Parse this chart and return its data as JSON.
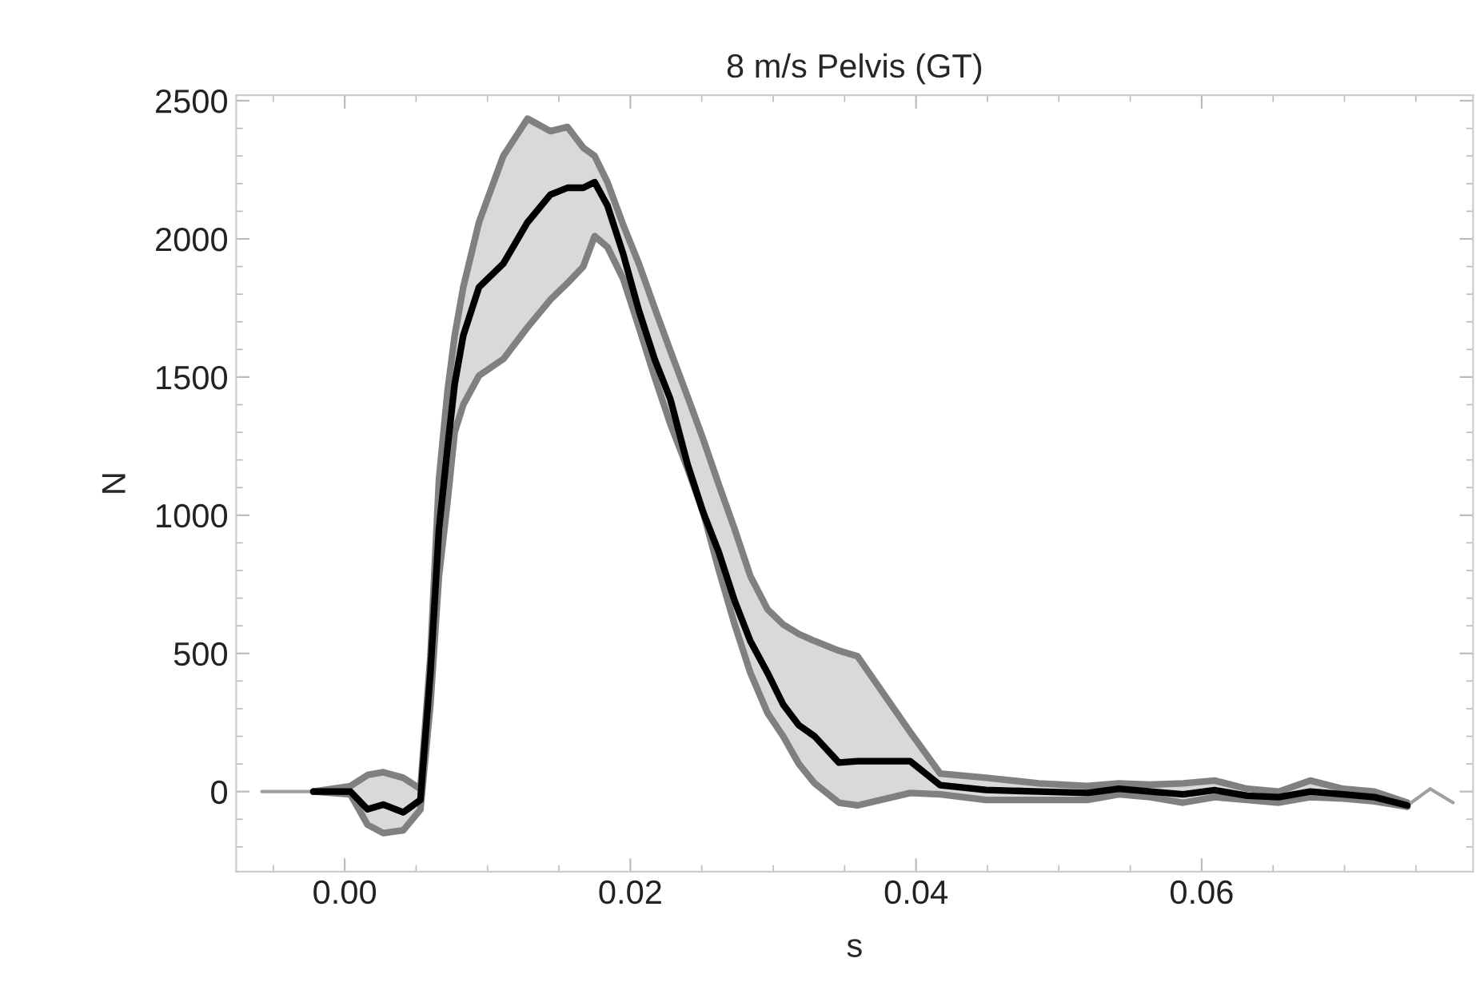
{
  "chart_data": {
    "type": "line",
    "title": "8 m/s Pelvis (GT)",
    "xlabel": "s",
    "ylabel": "N",
    "x": [
      -0.0022,
      0.0004,
      0.0016,
      0.0027,
      0.0041,
      0.0053,
      0.006,
      0.0066,
      0.0072,
      0.0077,
      0.0083,
      0.0094,
      0.0111,
      0.0128,
      0.0144,
      0.0156,
      0.0167,
      0.0175,
      0.0184,
      0.0195,
      0.0206,
      0.0217,
      0.0228,
      0.024,
      0.0251,
      0.0262,
      0.0273,
      0.0284,
      0.0296,
      0.0307,
      0.0318,
      0.0329,
      0.0346,
      0.0359,
      0.0396,
      0.0417,
      0.0449,
      0.0486,
      0.052,
      0.0542,
      0.0564,
      0.0587,
      0.0609,
      0.0632,
      0.0654,
      0.0676,
      0.0699,
      0.0721,
      0.0744
    ],
    "series": [
      {
        "color": "#000000",
        "values": [
          0,
          0,
          -64,
          -47,
          -75,
          -30,
          430,
          950,
          1245,
          1475,
          1650,
          1825,
          1910,
          2060,
          2160,
          2185,
          2185,
          2205,
          2120,
          1945,
          1740,
          1565,
          1420,
          1185,
          1010,
          865,
          690,
          545,
          430,
          315,
          240,
          200,
          105,
          110,
          110,
          23,
          6,
          0,
          -5,
          10,
          0,
          -10,
          5,
          -15,
          -20,
          0,
          -10,
          -20,
          -50
        ],
        "lower": [
          0,
          -10,
          -120,
          -150,
          -140,
          -65,
          315,
          780,
          1050,
          1300,
          1400,
          1505,
          1565,
          1680,
          1780,
          1840,
          1900,
          2010,
          1970,
          1855,
          1680,
          1500,
          1330,
          1170,
          1010,
          800,
          605,
          430,
          285,
          200,
          100,
          30,
          -40,
          -50,
          -5,
          -10,
          -30,
          -30,
          -30,
          -10,
          -20,
          -40,
          -20,
          -30,
          -40,
          -20,
          -25,
          -35,
          -55
        ],
        "upper": [
          0,
          20,
          60,
          70,
          50,
          10,
          490,
          1130,
          1450,
          1650,
          1825,
          2060,
          2300,
          2435,
          2390,
          2405,
          2330,
          2300,
          2205,
          2050,
          1910,
          1750,
          1595,
          1430,
          1275,
          1110,
          950,
          780,
          660,
          605,
          570,
          545,
          510,
          490,
          215,
          65,
          50,
          30,
          20,
          30,
          25,
          30,
          40,
          10,
          0,
          40,
          10,
          0,
          -40
        ]
      },
      {
        "color": "#808080",
        "values": [
          0,
          -10,
          -120,
          -150,
          -140,
          -65,
          315,
          780,
          1050,
          1300,
          1400,
          1505,
          1565,
          1680,
          1780,
          1840,
          1900,
          2010,
          1970,
          1855,
          1680,
          1500,
          1330,
          1170,
          1010,
          800,
          605,
          430,
          285,
          200,
          100,
          30,
          -40,
          -50,
          -5,
          -10,
          -30,
          -30,
          -30,
          -10,
          -20,
          -40,
          -20,
          -30,
          -40,
          -20,
          -25,
          -35,
          -55
        ]
      },
      {
        "color": "#808080",
        "values": [
          0,
          20,
          60,
          70,
          50,
          10,
          490,
          1130,
          1450,
          1650,
          1825,
          2060,
          2300,
          2435,
          2390,
          2405,
          2330,
          2300,
          2205,
          2050,
          1910,
          1750,
          1595,
          1430,
          1275,
          1110,
          950,
          780,
          660,
          605,
          570,
          545,
          510,
          490,
          215,
          65,
          50,
          30,
          20,
          30,
          25,
          30,
          40,
          10,
          0,
          40,
          10,
          0,
          -40
        ]
      },
      {
        "color": "#a0a0a0",
        "x": [
          -0.0058,
          -0.0022,
          0.03,
          0.0744,
          0.076,
          0.0776
        ],
        "values": [
          0,
          0,
          null,
          -50,
          10,
          -40
        ]
      }
    ],
    "xlim": [
      -0.0076,
      0.079
    ],
    "ylim": [
      -290,
      2520
    ],
    "xticks": [
      {
        "value": 0,
        "label": "0.00"
      },
      {
        "value": 0.02,
        "label": "0.02"
      },
      {
        "value": 0.04,
        "label": "0.04"
      },
      {
        "value": 0.06,
        "label": "0.06"
      }
    ],
    "yticks": [
      0,
      500,
      1000,
      1500,
      2000,
      2500
    ],
    "grid": false,
    "legend": false,
    "line_style": "solid",
    "marker": "none"
  }
}
